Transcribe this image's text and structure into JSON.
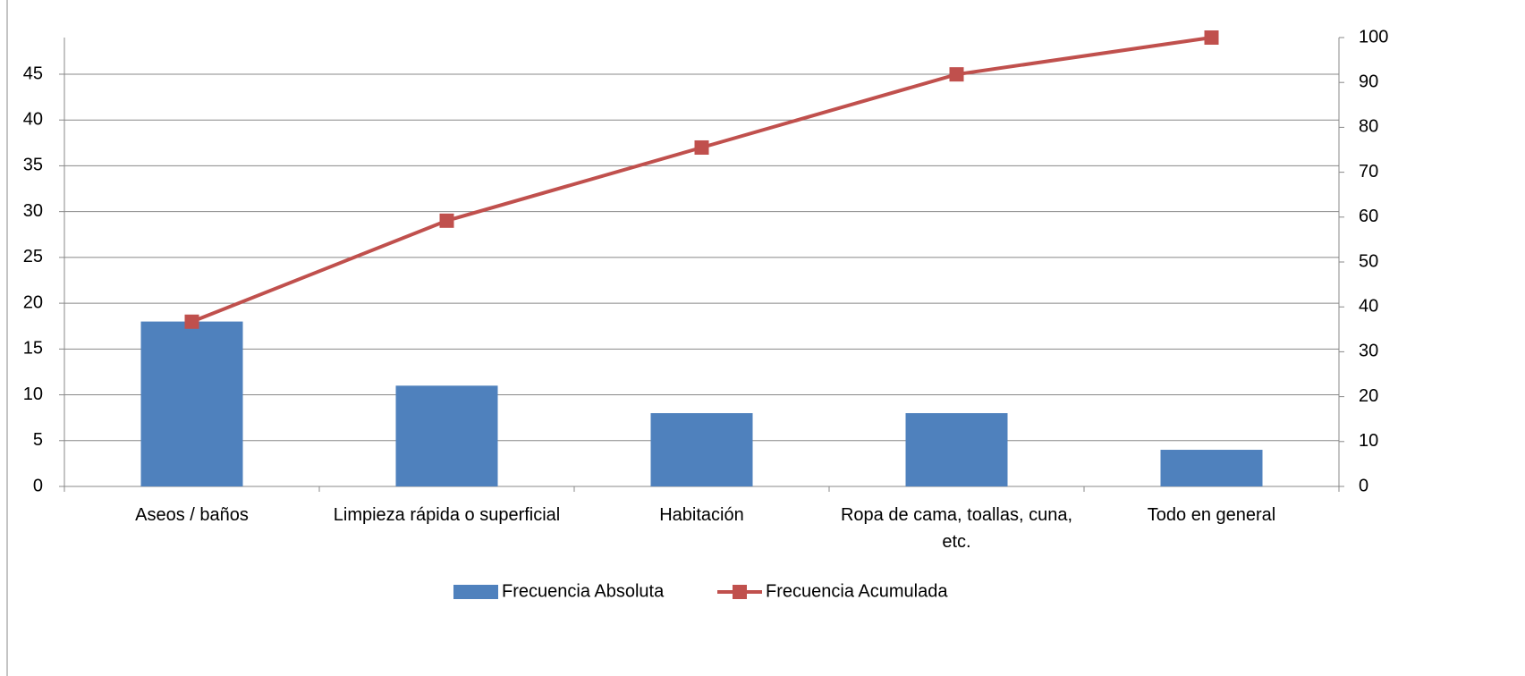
{
  "chart_data": {
    "type": "bar_line",
    "categories": [
      "Aseos / baños",
      "Limpieza rápida o superficial",
      "Habitación",
      "Ropa de cama, toallas, cuna, etc.",
      "Todo en general"
    ],
    "series": [
      {
        "name": "Frecuencia Absoluta",
        "type": "bar",
        "color": "#4f81bd",
        "values": [
          18,
          11,
          8,
          8,
          4
        ]
      },
      {
        "name": "Frecuencia Acumulada",
        "type": "line",
        "color": "#c0504d",
        "axis": "y2",
        "values": [
          36.7,
          59.2,
          75.5,
          91.8,
          100
        ]
      }
    ],
    "ylim": [
      0,
      49
    ],
    "yticks": [
      0,
      5,
      10,
      15,
      20,
      25,
      30,
      35,
      40,
      45
    ],
    "y2lim": [
      0,
      100
    ],
    "y2ticks": [
      0,
      10,
      20,
      30,
      40,
      50,
      60,
      70,
      80,
      90,
      100
    ],
    "grid": true,
    "legend": "bottom"
  }
}
